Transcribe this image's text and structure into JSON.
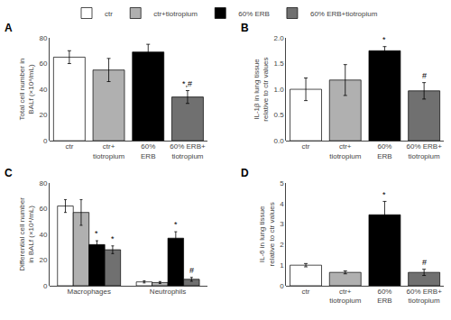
{
  "chart_data": [
    {
      "type": "bar",
      "title": "A",
      "ylabel": "Total cell number in\nBALf (×10⁴/mL)",
      "categories": [
        "ctr",
        "ctr+\ntiotropium",
        "60%\nERB",
        "60% ERB+\ntiotropium"
      ],
      "values": [
        65,
        55,
        69,
        34
      ],
      "errors": [
        5,
        9,
        6,
        5
      ],
      "colors": [
        "white",
        "#b0b0b0",
        "black",
        "#707070"
      ],
      "ylim": [
        0,
        80
      ],
      "yticks": [
        0,
        20,
        40,
        60,
        80
      ],
      "grid": false,
      "annotations": [
        {
          "category": "60% ERB+\ntiotropium",
          "text": "*,#",
          "y": 39.5
        }
      ]
    },
    {
      "type": "bar",
      "title": "B",
      "ylabel": "IL-1β in lung tissue\nrelative to ctr values",
      "categories": [
        "ctr",
        "ctr+\ntiotropium",
        "60%\nERB",
        "60% ERB+\ntiotropium"
      ],
      "values": [
        1.0,
        1.18,
        1.75,
        0.97
      ],
      "errors": [
        0.22,
        0.3,
        0.08,
        0.16
      ],
      "colors": [
        "white",
        "#b0b0b0",
        "black",
        "#707070"
      ],
      "ylim": [
        0,
        2.0
      ],
      "yticks": [
        {
          "value": 0,
          "label": "0.0"
        },
        0.5,
        {
          "value": 1,
          "label": "1.0"
        },
        1.5,
        {
          "value": 2,
          "label": "2.0"
        }
      ],
      "grid": false,
      "annotations": [
        {
          "category": "60%\nERB",
          "text": "*",
          "y": 1.84
        },
        {
          "category": "60% ERB+\ntiotropium",
          "text": "#",
          "y": 1.14
        }
      ]
    },
    {
      "type": "bar",
      "title": "C",
      "ylabel": "Differential cell number\nin BALf (×10⁴/mL)",
      "categories": [
        "Macrophages",
        "Neutrophils"
      ],
      "series": [
        {
          "name": "ctr",
          "color": "white",
          "values": [
            62,
            3
          ],
          "errors": [
            5,
            0.8
          ]
        },
        {
          "name": "ctr+tiotropium",
          "color": "#b0b0b0",
          "values": [
            57,
            2.5
          ],
          "errors": [
            10,
            0.8
          ]
        },
        {
          "name": "60% ERB",
          "color": "black",
          "values": [
            32,
            37
          ],
          "errors": [
            3,
            5
          ]
        },
        {
          "name": "60% ERB+tiotropium",
          "color": "#707070",
          "values": [
            28,
            5
          ],
          "errors": [
            3,
            1.5
          ]
        }
      ],
      "ylim": [
        0,
        80
      ],
      "yticks": [
        0,
        20,
        40,
        60,
        80
      ],
      "grid": false,
      "legend": "top",
      "annotations": [
        {
          "category": "Macrophages",
          "series": "60% ERB",
          "text": "*",
          "y": 35.5
        },
        {
          "category": "Macrophages",
          "series": "60% ERB+tiotropium",
          "text": "*",
          "y": 31.5
        },
        {
          "category": "Neutrophils",
          "series": "60% ERB",
          "text": "*",
          "y": 42.5
        },
        {
          "category": "Neutrophils",
          "series": "60% ERB+tiotropium",
          "text": "#",
          "y": 7.0
        }
      ]
    },
    {
      "type": "bar",
      "title": "D",
      "ylabel": "IL-6 in lung tissue\nrelative to ctr values",
      "categories": [
        "ctr",
        "ctr+\ntiotropium",
        "60%\nERB",
        "60% ERB+\ntiotropium"
      ],
      "values": [
        1.0,
        0.65,
        3.45,
        0.65
      ],
      "errors": [
        0.08,
        0.07,
        0.65,
        0.15
      ],
      "colors": [
        "white",
        "#b0b0b0",
        "black",
        "#707070"
      ],
      "ylim": [
        0,
        5
      ],
      "yticks": [
        0,
        1,
        2,
        3,
        4,
        5
      ],
      "grid": false,
      "annotations": [
        {
          "category": "60%\nERB",
          "text": "*",
          "y": 4.12
        },
        {
          "category": "60% ERB+\ntiotropium",
          "text": "#",
          "y": 0.82
        }
      ]
    }
  ]
}
